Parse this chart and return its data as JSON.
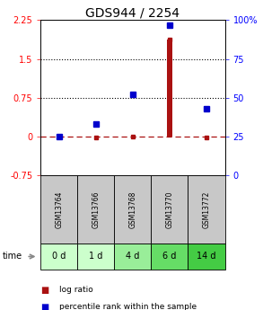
{
  "title": "GDS944 / 2254",
  "samples": [
    "GSM13764",
    "GSM13766",
    "GSM13768",
    "GSM13770",
    "GSM13772"
  ],
  "time_labels": [
    "0 d",
    "1 d",
    "4 d",
    "6 d",
    "14 d"
  ],
  "log_ratio": [
    0.0,
    -0.02,
    0.0,
    1.88,
    -0.02
  ],
  "percentile": [
    25,
    33,
    52,
    97,
    43
  ],
  "ylim_left": [
    -0.75,
    2.25
  ],
  "ylim_right": [
    0,
    100
  ],
  "yticks_left": [
    -0.75,
    0.0,
    0.75,
    1.5,
    2.25
  ],
  "ytick_labels_left": [
    "-0.75",
    "0",
    "0.75",
    "1.5",
    "2.25"
  ],
  "yticks_right": [
    0,
    25,
    50,
    75,
    100
  ],
  "ytick_labels_right": [
    "0",
    "25",
    "50",
    "75",
    "100%"
  ],
  "hlines": [
    0.75,
    1.5
  ],
  "bar_color": "#aa1111",
  "dot_color": "#0000cc",
  "dashed_line_y": 0.0,
  "sample_bg_color": "#c8c8c8",
  "time_bg_colors": [
    "#ccffcc",
    "#ccffcc",
    "#99ee99",
    "#66dd66",
    "#44cc44"
  ],
  "legend_bar_label": "log ratio",
  "legend_dot_label": "percentile rank within the sample",
  "title_fontsize": 10,
  "tick_fontsize": 7
}
